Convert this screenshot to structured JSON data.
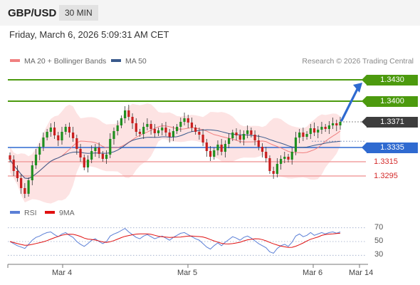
{
  "header": {
    "pair": "GBP/USD",
    "timeframe": "30 MIN"
  },
  "datetime": "Friday, March 6, 2026 5:09:31 AM CET",
  "legend": {
    "ma20": "MA 20 + Bollinger Bands",
    "ma50": "MA 50",
    "rsi": "RSI",
    "ma9": "9MA"
  },
  "credit": "Research © 2026 Trading Central",
  "colors": {
    "green": "#4c9a0e",
    "blue": "#2f6ad0",
    "red": "#d42a2a",
    "band": "#fcd9d9",
    "ma20": "#f08080",
    "ma50": "#3a5a8c",
    "up": "#1f8f1f",
    "down": "#c81e1e"
  },
  "chart_data": {
    "type": "candlestick",
    "y_range": [
      1.3262,
      1.3442
    ],
    "levels": [
      {
        "label": "1.3430",
        "value": 1.343,
        "kind": "resistance"
      },
      {
        "label": "1.3400",
        "value": 1.34,
        "kind": "resistance"
      },
      {
        "label": "1.3371",
        "value": 1.3371,
        "kind": "last"
      },
      {
        "label": "1.3335",
        "value": 1.3335,
        "kind": "pivot"
      },
      {
        "label": "1.3315",
        "value": 1.3315,
        "kind": "support"
      },
      {
        "label": "1.3295",
        "value": 1.3295,
        "kind": "support"
      }
    ],
    "target": {
      "from": 1.3371,
      "to": 1.343
    },
    "x_labels": [
      "Mar 4",
      "Mar 5",
      "Mar 6",
      "Mar 14"
    ],
    "close": [
      1.3318,
      1.3302,
      1.3292,
      1.3278,
      1.327,
      1.3289,
      1.331,
      1.3325,
      1.3336,
      1.3349,
      1.3357,
      1.3363,
      1.3352,
      1.3345,
      1.3357,
      1.3364,
      1.3356,
      1.3348,
      1.3333,
      1.3321,
      1.3307,
      1.3318,
      1.333,
      1.3335,
      1.3326,
      1.3319,
      1.3325,
      1.3347,
      1.3358,
      1.3366,
      1.3376,
      1.3387,
      1.3378,
      1.3369,
      1.3357,
      1.3354,
      1.3364,
      1.3368,
      1.3361,
      1.3355,
      1.3359,
      1.3363,
      1.3356,
      1.335,
      1.3358,
      1.3364,
      1.3371,
      1.3376,
      1.337,
      1.3363,
      1.3357,
      1.3353,
      1.3342,
      1.333,
      1.3322,
      1.3331,
      1.3339,
      1.3329,
      1.334,
      1.3348,
      1.3356,
      1.3352,
      1.3346,
      1.3354,
      1.3359,
      1.3353,
      1.3345,
      1.3336,
      1.3329,
      1.332,
      1.3302,
      1.3298,
      1.3312,
      1.3319,
      1.3322,
      1.3318,
      1.3329,
      1.3349,
      1.3356,
      1.335,
      1.3354,
      1.3362,
      1.3356,
      1.336,
      1.3364,
      1.3361,
      1.3366,
      1.3369,
      1.3366,
      1.3371
    ],
    "rsi": [
      50,
      47,
      44,
      42,
      40,
      46,
      52,
      56,
      58,
      61,
      63,
      64,
      60,
      57,
      61,
      63,
      59,
      56,
      50,
      46,
      43,
      47,
      52,
      54,
      50,
      47,
      50,
      58,
      61,
      63,
      66,
      69,
      64,
      60,
      56,
      54,
      58,
      60,
      57,
      54,
      56,
      58,
      55,
      52,
      56,
      59,
      62,
      63,
      60,
      57,
      54,
      52,
      47,
      42,
      39,
      44,
      48,
      44,
      49,
      53,
      57,
      55,
      52,
      56,
      58,
      55,
      51,
      47,
      44,
      41,
      35,
      33,
      40,
      44,
      46,
      43,
      49,
      58,
      61,
      57,
      59,
      63,
      59,
      61,
      63,
      61,
      63,
      64,
      62,
      64
    ],
    "rsi_ticks": [
      70,
      50,
      30
    ],
    "rsi_range": [
      20,
      80
    ]
  }
}
